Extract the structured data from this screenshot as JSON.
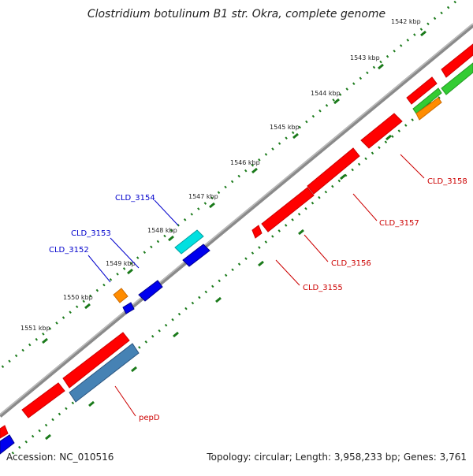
{
  "title": "Clostridium botulinum B1 str. Okra, complete genome",
  "footer": {
    "accession": "Accession: NC_010516",
    "summary": "Topology: circular; Length: 3,958,233 bp; Genes: 3,761"
  },
  "ticks": [
    "1542 kbp",
    "1543 kbp",
    "1544 kbp",
    "1545 kbp",
    "1546 kbp",
    "1547 kbp",
    "1548 kbp",
    "1549 kbp",
    "1550 kbp",
    "1551 kbp"
  ],
  "gene_labels": {
    "cld3154": "CLD_3154",
    "cld3153": "CLD_3153",
    "cld3152": "CLD_3152",
    "cld3158": "CLD_3158",
    "cld3157": "CLD_3157",
    "cld3156": "CLD_3156",
    "cld3155": "CLD_3155",
    "pepd": "pepD"
  },
  "colors": {
    "backbone": "#888888",
    "tick_marks": "#1a7a1a",
    "red_gene": "#ff0000",
    "blue_gene": "#0000ee",
    "cyan_gene": "#00e0e0",
    "orange_gene": "#ff8c00",
    "steelblue_gene": "#4682b4",
    "green_gene": "#33cc33",
    "label_blue": "#0000cc",
    "label_red": "#cc0000"
  }
}
